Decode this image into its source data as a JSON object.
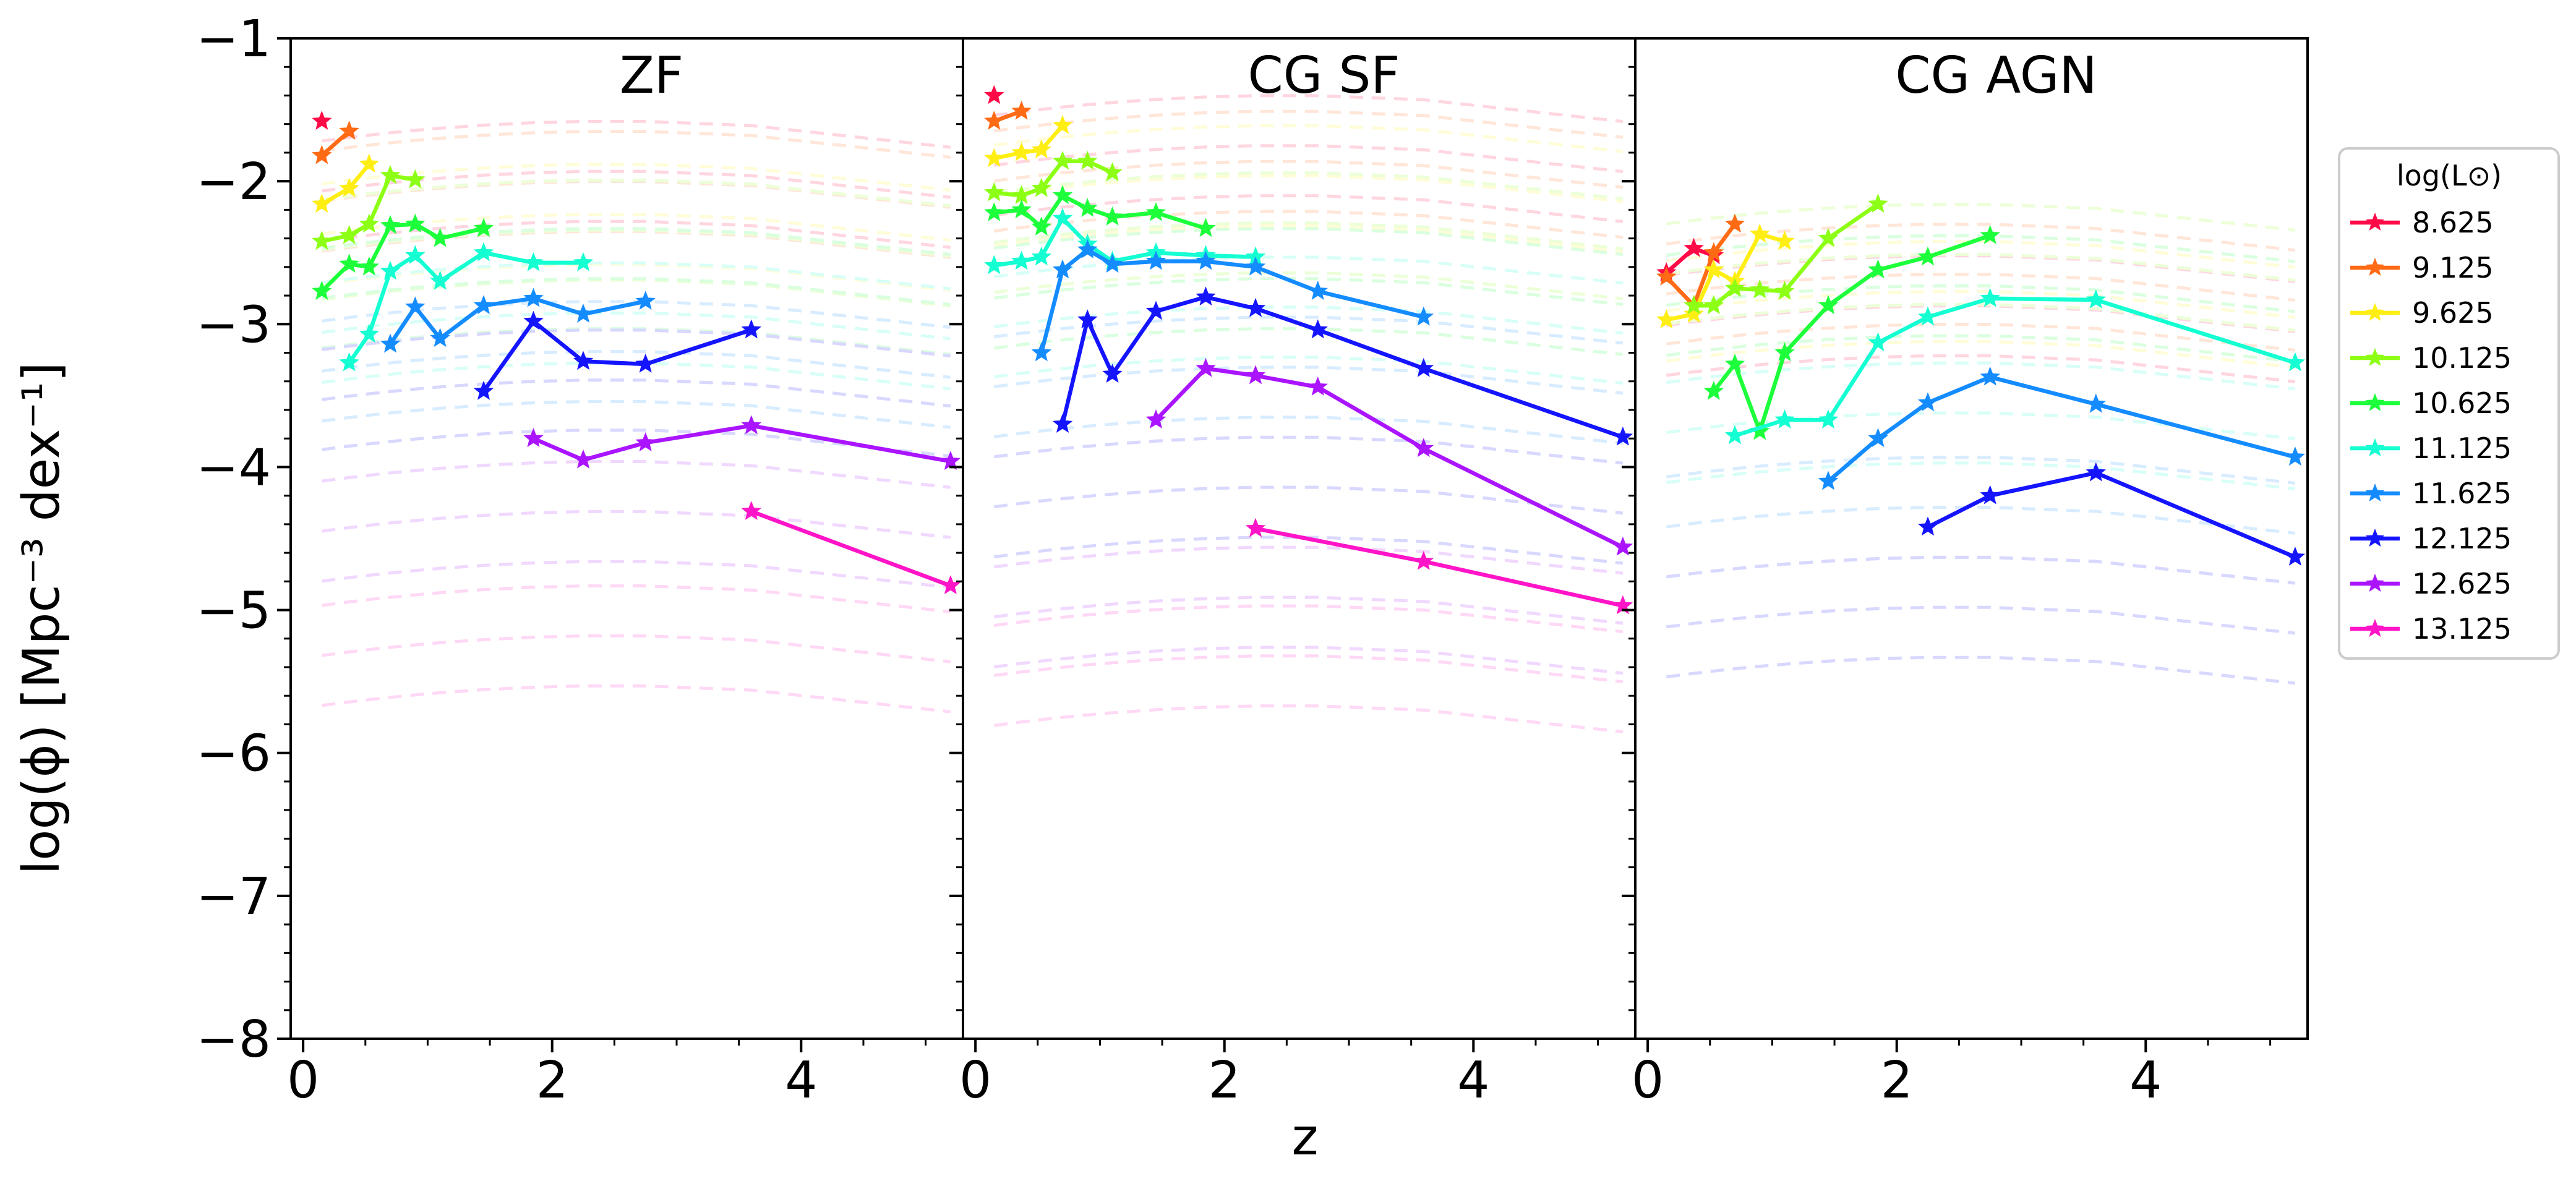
{
  "figure": {
    "ylabel": "log(ϕ) [Mpc⁻³ dex⁻¹]",
    "xlabel": "z"
  },
  "legend": {
    "title": "log(L⊙)",
    "entries": [
      "8.625",
      "9.125",
      "9.625",
      "10.125",
      "10.625",
      "11.125",
      "11.625",
      "12.125",
      "12.625",
      "13.125"
    ]
  },
  "colors": {
    "8.625": "#ff0a46",
    "9.125": "#ff6a14",
    "9.625": "#ffee14",
    "10.125": "#8cff14",
    "10.625": "#1eff3c",
    "11.125": "#14ffd2",
    "11.625": "#148cff",
    "12.125": "#1414ff",
    "12.625": "#aa14ff",
    "13.125": "#ff14c8"
  },
  "chart_data": [
    {
      "type": "line",
      "title": "ZF",
      "xlabel": "z",
      "ylabel": "log(ϕ) [Mpc⁻³ dex⁻¹]",
      "xlim": [
        -0.1,
        5.3
      ],
      "ylim": [
        -8,
        -1
      ],
      "xticks": [
        "0",
        "2",
        "4"
      ],
      "yticks": [
        "−1",
        "−2",
        "−3",
        "−4",
        "−5",
        "−6",
        "−7",
        "−8"
      ],
      "x": [
        0.15,
        0.37,
        0.53,
        0.7,
        0.9,
        1.1,
        1.45,
        1.85,
        2.25,
        2.75,
        3.6,
        5.2
      ],
      "series": [
        {
          "name": "8.625",
          "x": [
            0.15
          ],
          "values": [
            -1.58
          ]
        },
        {
          "name": "9.125",
          "x": [
            0.15,
            0.37
          ],
          "values": [
            -1.82,
            -1.65
          ]
        },
        {
          "name": "9.625",
          "x": [
            0.15,
            0.37,
            0.53
          ],
          "values": [
            -2.16,
            -2.05,
            -1.88
          ]
        },
        {
          "name": "10.125",
          "x": [
            0.15,
            0.37,
            0.53,
            0.7,
            0.9
          ],
          "values": [
            -2.42,
            -2.38,
            -2.3,
            -1.96,
            -1.99
          ]
        },
        {
          "name": "10.625",
          "x": [
            0.15,
            0.37,
            0.53,
            0.7,
            0.9,
            1.1,
            1.45
          ],
          "values": [
            -2.77,
            -2.58,
            -2.6,
            -2.31,
            -2.3,
            -2.4,
            -2.33
          ]
        },
        {
          "name": "11.125",
          "x": [
            0.37,
            0.53,
            0.7,
            0.9,
            1.1,
            1.45,
            1.85,
            2.25
          ],
          "values": [
            -3.27,
            -3.07,
            -2.63,
            -2.52,
            -2.7,
            -2.5,
            -2.57,
            -2.57
          ]
        },
        {
          "name": "11.625",
          "x": [
            0.7,
            0.9,
            1.1,
            1.45,
            1.85,
            2.25,
            2.75
          ],
          "values": [
            -3.14,
            -2.88,
            -3.1,
            -2.87,
            -2.82,
            -2.93,
            -2.84
          ]
        },
        {
          "name": "12.125",
          "x": [
            1.45,
            1.85,
            2.25,
            2.75,
            3.6
          ],
          "values": [
            -3.47,
            -2.98,
            -3.26,
            -3.28,
            -3.04
          ]
        },
        {
          "name": "12.625",
          "x": [
            1.85,
            2.25,
            2.75,
            3.6,
            5.2
          ],
          "values": [
            -3.8,
            -3.95,
            -3.83,
            -3.71,
            -3.96
          ]
        },
        {
          "name": "13.125",
          "x": [
            3.6,
            5.2
          ],
          "values": [
            -4.31,
            -4.83
          ]
        }
      ]
    },
    {
      "type": "line",
      "title": "CG SF",
      "xlabel": "z",
      "ylabel": "log(ϕ) [Mpc⁻³ dex⁻¹]",
      "xlim": [
        -0.1,
        5.3
      ],
      "ylim": [
        -8,
        -1
      ],
      "xticks": [
        "0",
        "2",
        "4"
      ],
      "yticks": [
        "−1",
        "−2",
        "−3",
        "−4",
        "−5",
        "−6",
        "−7",
        "−8"
      ],
      "x": [
        0.15,
        0.37,
        0.53,
        0.7,
        0.9,
        1.1,
        1.45,
        1.85,
        2.25,
        2.75,
        3.6,
        5.2
      ],
      "series": [
        {
          "name": "8.625",
          "x": [
            0.15
          ],
          "values": [
            -1.4
          ]
        },
        {
          "name": "9.125",
          "x": [
            0.15,
            0.37
          ],
          "values": [
            -1.58,
            -1.51
          ]
        },
        {
          "name": "9.625",
          "x": [
            0.15,
            0.37,
            0.53,
            0.7
          ],
          "values": [
            -1.84,
            -1.8,
            -1.78,
            -1.61
          ]
        },
        {
          "name": "10.125",
          "x": [
            0.15,
            0.37,
            0.53,
            0.7,
            0.9,
            1.1
          ],
          "values": [
            -2.08,
            -2.1,
            -2.05,
            -1.86,
            -1.86,
            -1.94
          ]
        },
        {
          "name": "10.625",
          "x": [
            0.15,
            0.37,
            0.53,
            0.7,
            0.9,
            1.1,
            1.45,
            1.85
          ],
          "values": [
            -2.22,
            -2.2,
            -2.32,
            -2.1,
            -2.19,
            -2.25,
            -2.22,
            -2.33
          ]
        },
        {
          "name": "11.125",
          "x": [
            0.15,
            0.37,
            0.53,
            0.7,
            0.9,
            1.1,
            1.45,
            1.85,
            2.25
          ],
          "values": [
            -2.59,
            -2.56,
            -2.53,
            -2.26,
            -2.44,
            -2.56,
            -2.5,
            -2.52,
            -2.53
          ]
        },
        {
          "name": "11.625",
          "x": [
            0.53,
            0.7,
            0.9,
            1.1,
            1.45,
            1.85,
            2.25,
            2.75,
            3.6
          ],
          "values": [
            -3.2,
            -2.62,
            -2.48,
            -2.58,
            -2.56,
            -2.56,
            -2.6,
            -2.77,
            -2.95
          ]
        },
        {
          "name": "12.125",
          "x": [
            0.7,
            0.9,
            1.1,
            1.45,
            1.85,
            2.25,
            2.75,
            3.6,
            5.2
          ],
          "values": [
            -3.7,
            -2.97,
            -3.35,
            -2.91,
            -2.81,
            -2.89,
            -3.04,
            -3.31,
            -3.79
          ]
        },
        {
          "name": "12.625",
          "x": [
            1.45,
            1.85,
            2.25,
            2.75,
            3.6,
            5.2
          ],
          "values": [
            -3.67,
            -3.31,
            -3.36,
            -3.44,
            -3.87,
            -4.56
          ]
        },
        {
          "name": "13.125",
          "x": [
            2.25,
            3.6,
            5.2
          ],
          "values": [
            -4.43,
            -4.66,
            -4.97
          ]
        }
      ]
    },
    {
      "type": "line",
      "title": "CG AGN",
      "xlabel": "z",
      "ylabel": "log(ϕ) [Mpc⁻³ dex⁻¹]",
      "xlim": [
        -0.1,
        5.3
      ],
      "ylim": [
        -8,
        -1
      ],
      "xticks": [
        "0",
        "2",
        "4"
      ],
      "yticks": [
        "−1",
        "−2",
        "−3",
        "−4",
        "−5",
        "−6",
        "−7",
        "−8"
      ],
      "x": [
        0.15,
        0.37,
        0.53,
        0.7,
        0.9,
        1.1,
        1.45,
        1.85,
        2.25,
        2.75,
        3.6,
        5.2
      ],
      "series": [
        {
          "name": "8.625",
          "x": [
            0.15,
            0.37,
            0.53
          ],
          "values": [
            -2.64,
            -2.47,
            -2.52
          ]
        },
        {
          "name": "9.125",
          "x": [
            0.15,
            0.37,
            0.53,
            0.7
          ],
          "values": [
            -2.67,
            -2.87,
            -2.5,
            -2.3
          ]
        },
        {
          "name": "9.625",
          "x": [
            0.15,
            0.37,
            0.53,
            0.7,
            0.9,
            1.1
          ],
          "values": [
            -2.97,
            -2.93,
            -2.62,
            -2.7,
            -2.37,
            -2.42
          ]
        },
        {
          "name": "10.125",
          "x": [
            0.37,
            0.53,
            0.7,
            0.9,
            1.1,
            1.45,
            1.85
          ],
          "values": [
            -2.87,
            -2.87,
            -2.75,
            -2.76,
            -2.77,
            -2.4,
            -2.16
          ]
        },
        {
          "name": "10.625",
          "x": [
            0.53,
            0.7,
            0.9,
            1.1,
            1.45,
            1.85,
            2.25,
            2.75
          ],
          "values": [
            -3.47,
            -3.28,
            -3.75,
            -3.2,
            -2.87,
            -2.62,
            -2.53,
            -2.38
          ]
        },
        {
          "name": "11.125",
          "x": [
            0.7,
            1.1,
            1.45,
            1.85,
            2.25,
            2.75,
            3.6,
            5.2
          ],
          "values": [
            -3.78,
            -3.67,
            -3.67,
            -3.13,
            -2.95,
            -2.82,
            -2.83,
            -3.27
          ]
        },
        {
          "name": "11.625",
          "x": [
            1.45,
            1.85,
            2.25,
            2.75,
            3.6,
            5.2
          ],
          "values": [
            -4.1,
            -3.8,
            -3.55,
            -3.37,
            -3.56,
            -3.93
          ]
        },
        {
          "name": "12.125",
          "x": [
            2.25,
            2.75,
            3.6,
            5.2
          ],
          "values": [
            -4.42,
            -4.2,
            -4.04,
            -4.63
          ]
        }
      ]
    }
  ]
}
